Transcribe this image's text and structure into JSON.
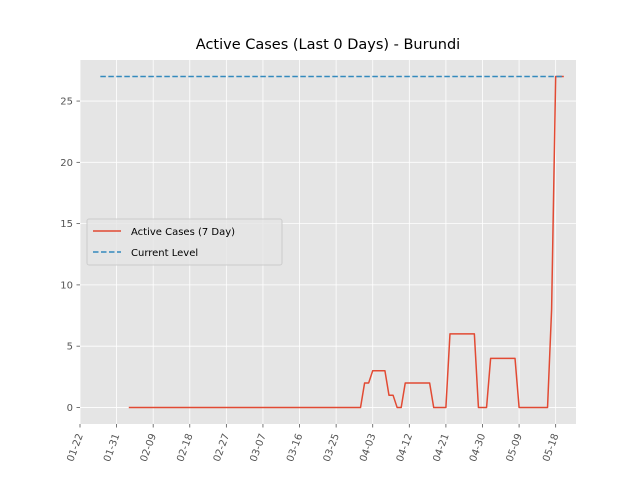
{
  "chart_data": {
    "type": "line",
    "title": "Active Cases (Last 0 Days) - Burundi",
    "xlabel": "",
    "ylabel": "",
    "x_axis": "date",
    "year": 2020,
    "xlim": [
      "2020-01-22",
      "2020-05-23"
    ],
    "ylim": [
      -1.35,
      28.35
    ],
    "x_ticks": [
      "01-22",
      "01-31",
      "02-09",
      "02-18",
      "02-27",
      "03-07",
      "03-16",
      "03-25",
      "04-03",
      "04-12",
      "04-21",
      "04-30",
      "05-09",
      "05-18"
    ],
    "y_ticks": [
      0,
      5,
      10,
      15,
      20,
      25
    ],
    "grid": true,
    "legend": {
      "position": "center-left",
      "entries": [
        "Active Cases (7 Day)",
        "Current Level"
      ]
    },
    "series": [
      {
        "name": "Active Cases (7 Day)",
        "color": "#E24A33",
        "style": "solid",
        "points": [
          [
            "2020-02-03",
            0
          ],
          [
            "2020-03-31",
            0
          ],
          [
            "2020-04-01",
            2
          ],
          [
            "2020-04-02",
            2
          ],
          [
            "2020-04-03",
            3
          ],
          [
            "2020-04-06",
            3
          ],
          [
            "2020-04-07",
            1
          ],
          [
            "2020-04-08",
            1
          ],
          [
            "2020-04-09",
            0
          ],
          [
            "2020-04-10",
            0
          ],
          [
            "2020-04-11",
            2
          ],
          [
            "2020-04-17",
            2
          ],
          [
            "2020-04-18",
            0
          ],
          [
            "2020-04-21",
            0
          ],
          [
            "2020-04-22",
            6
          ],
          [
            "2020-04-28",
            6
          ],
          [
            "2020-04-29",
            0
          ],
          [
            "2020-05-01",
            0
          ],
          [
            "2020-05-02",
            4
          ],
          [
            "2020-05-08",
            4
          ],
          [
            "2020-05-09",
            0
          ],
          [
            "2020-05-16",
            0
          ],
          [
            "2020-05-17",
            8
          ],
          [
            "2020-05-18",
            27
          ],
          [
            "2020-05-20",
            27
          ]
        ]
      },
      {
        "name": "Current Level",
        "color": "#348ABD",
        "style": "dashed",
        "points": [
          [
            "2020-01-27",
            27
          ],
          [
            "2020-05-20",
            27
          ]
        ]
      }
    ]
  }
}
